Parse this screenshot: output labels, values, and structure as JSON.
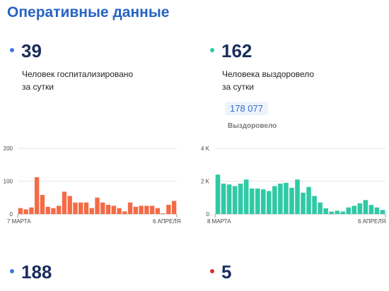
{
  "header": {
    "title": "Оперативные данные"
  },
  "stats": {
    "hospitalized": {
      "value": "39",
      "label_line1": "Человек госпитализировано",
      "label_line2": "за сутки",
      "color": "#3d79d6"
    },
    "recovered": {
      "value": "162",
      "label_line1": "Человека выздоровело",
      "label_line2": "за сутки",
      "color": "#2ec7a2",
      "total": "178 077",
      "total_label": "Выздоровело"
    },
    "third": {
      "value": "188",
      "color": "#3d79d6"
    },
    "fourth": {
      "value": "5",
      "color": "#d9302c"
    }
  },
  "chart_data": [
    {
      "type": "bar",
      "color": "#f56a45",
      "ylim": [
        0,
        200
      ],
      "y_ticks": [
        0,
        100,
        200
      ],
      "y_tick_labels": [
        "0",
        "100",
        "200"
      ],
      "x_start_label": "7 МАРТА",
      "x_end_label": "6 АПРЕЛЯ",
      "values": [
        18,
        14,
        20,
        112,
        58,
        22,
        18,
        25,
        68,
        55,
        35,
        35,
        35,
        18,
        50,
        35,
        28,
        25,
        18,
        8,
        35,
        22,
        25,
        25,
        25,
        18,
        2,
        28,
        40
      ]
    },
    {
      "type": "bar",
      "color": "#2fcaa5",
      "ylim": [
        0,
        4000
      ],
      "y_ticks": [
        0,
        2000,
        4000
      ],
      "y_tick_labels": [
        "0",
        "2 K",
        "4 K"
      ],
      "x_start_label": "8 МАРТА",
      "x_end_label": "6 АПРЕЛЯ",
      "values": [
        2400,
        1850,
        1800,
        1700,
        1850,
        2100,
        1550,
        1550,
        1500,
        1400,
        1700,
        1850,
        1900,
        1600,
        2100,
        1300,
        1650,
        1100,
        700,
        350,
        150,
        200,
        150,
        400,
        500,
        650,
        850,
        550,
        400,
        250
      ]
    }
  ]
}
